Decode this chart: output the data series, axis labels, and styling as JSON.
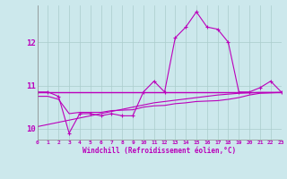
{
  "x": [
    0,
    1,
    2,
    3,
    4,
    5,
    6,
    7,
    8,
    9,
    10,
    11,
    12,
    13,
    14,
    15,
    16,
    17,
    18,
    19,
    20,
    21,
    22,
    23
  ],
  "line1": [
    10.85,
    10.85,
    10.75,
    9.9,
    10.35,
    10.35,
    10.3,
    10.35,
    10.3,
    10.3,
    10.85,
    11.1,
    10.85,
    12.1,
    12.35,
    12.7,
    12.35,
    12.3,
    12.0,
    10.85,
    10.85,
    10.95,
    11.1,
    10.85
  ],
  "line2": [
    10.85,
    10.85,
    10.85,
    10.85,
    10.85,
    10.85,
    10.85,
    10.85,
    10.85,
    10.85,
    10.85,
    10.85,
    10.85,
    10.85,
    10.85,
    10.85,
    10.85,
    10.85,
    10.85,
    10.85,
    10.85,
    10.85,
    10.85,
    10.85
  ],
  "line3": [
    10.75,
    10.75,
    10.68,
    10.35,
    10.38,
    10.38,
    10.38,
    10.42,
    10.43,
    10.44,
    10.5,
    10.53,
    10.54,
    10.58,
    10.6,
    10.63,
    10.64,
    10.65,
    10.68,
    10.72,
    10.78,
    10.82,
    10.83,
    10.84
  ],
  "line4": [
    10.05,
    10.1,
    10.15,
    10.2,
    10.25,
    10.3,
    10.35,
    10.4,
    10.45,
    10.5,
    10.55,
    10.6,
    10.63,
    10.66,
    10.69,
    10.72,
    10.75,
    10.78,
    10.8,
    10.82,
    10.83,
    10.84,
    10.84,
    10.84
  ],
  "bg_color": "#cce8ec",
  "grid_color": "#aacccc",
  "line_color": "#bb00bb",
  "xlabel": "Windchill (Refroidissement éolien,°C)",
  "yticks": [
    10,
    11,
    12
  ],
  "xticks": [
    0,
    1,
    2,
    3,
    4,
    5,
    6,
    7,
    8,
    9,
    10,
    11,
    12,
    13,
    14,
    15,
    16,
    17,
    18,
    19,
    20,
    21,
    22,
    23
  ],
  "xlim": [
    0,
    23
  ],
  "ylim": [
    9.75,
    12.85
  ]
}
